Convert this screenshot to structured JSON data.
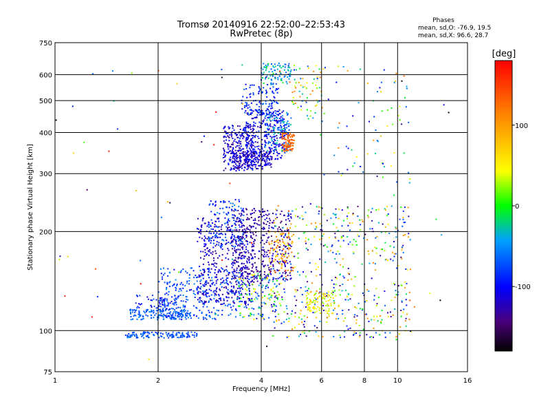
{
  "chart_data": {
    "type": "scatter",
    "title": "Tromsø 20140916 22:52:00–22:53:43",
    "subtitle": "RwPretec (8p)",
    "xlabel": "Frequency [MHz]",
    "ylabel": "Stationary phase Virtual Height [km]",
    "x_scale": "log",
    "y_scale": "log",
    "xlim": [
      1,
      16
    ],
    "ylim": [
      75,
      750
    ],
    "x_ticks": [
      1,
      2,
      4,
      6,
      8,
      10,
      16
    ],
    "x_tick_labels": [
      "1",
      "2",
      "4",
      "6",
      "8",
      "10",
      "16"
    ],
    "y_ticks": [
      75,
      100,
      200,
      300,
      400,
      500,
      600,
      750
    ],
    "y_tick_labels": [
      "75",
      "100",
      "200",
      "300",
      "400",
      "500",
      "600",
      "750"
    ],
    "grid": true,
    "stats": {
      "header": "Phases",
      "line_o": "mean, sd,O: -76.9, 19.5",
      "line_x": "mean, sd,X:  96.6, 28.7"
    },
    "colorbar": {
      "label": "[deg]",
      "range": [
        -180,
        180
      ],
      "ticks": [
        100,
        0,
        -100
      ],
      "tick_labels": [
        "100",
        "0",
        "-100"
      ]
    },
    "clusters": [
      {
        "f": [
          1.6,
          2.6
        ],
        "h": [
          95,
          99
        ],
        "phase": [
          -85,
          -55
        ],
        "n": 120
      },
      {
        "f": [
          1.65,
          2.5
        ],
        "h": [
          108,
          116
        ],
        "phase": [
          -80,
          -55
        ],
        "n": 150
      },
      {
        "f": [
          1.7,
          2.3
        ],
        "h": [
          116,
          128
        ],
        "phase": [
          -110,
          -65
        ],
        "n": 60
      },
      {
        "f": [
          2.0,
          3.4
        ],
        "h": [
          108,
          155
        ],
        "phase": [
          -100,
          -50
        ],
        "n": 300
      },
      {
        "f": [
          2.6,
          3.8
        ],
        "h": [
          120,
          220
        ],
        "phase": [
          -140,
          -95
        ],
        "n": 420
      },
      {
        "f": [
          3.3,
          4.9
        ],
        "h": [
          140,
          235
        ],
        "phase": [
          -150,
          -110
        ],
        "n": 380
      },
      {
        "f": [
          2.8,
          3.6
        ],
        "h": [
          180,
          250
        ],
        "phase": [
          -110,
          -50
        ],
        "n": 140
      },
      {
        "f": [
          3.4,
          4.5
        ],
        "h": [
          108,
          150
        ],
        "phase": [
          -120,
          60
        ],
        "n": 160
      },
      {
        "f": [
          4.2,
          5.0
        ],
        "h": [
          150,
          200
        ],
        "phase": [
          60,
          150
        ],
        "n": 90
      },
      {
        "f": [
          4.3,
          11.0
        ],
        "h": [
          95,
          240
        ],
        "phase": [
          -150,
          120
        ],
        "n": 520
      },
      {
        "f": [
          5.4,
          6.5
        ],
        "h": [
          112,
          132
        ],
        "phase": [
          20,
          80
        ],
        "n": 90
      },
      {
        "f": [
          3.1,
          3.8
        ],
        "h": [
          305,
          420
        ],
        "phase": [
          -140,
          -85
        ],
        "n": 260
      },
      {
        "f": [
          3.3,
          4.3
        ],
        "h": [
          310,
          350
        ],
        "phase": [
          -140,
          -100
        ],
        "n": 180
      },
      {
        "f": [
          3.6,
          4.7
        ],
        "h": [
          330,
          470
        ],
        "phase": [
          -130,
          -80
        ],
        "n": 250
      },
      {
        "f": [
          4.1,
          4.9
        ],
        "h": [
          350,
          460
        ],
        "phase": [
          -110,
          -20
        ],
        "n": 140
      },
      {
        "f": [
          4.6,
          5.0
        ],
        "h": [
          350,
          400
        ],
        "phase": [
          110,
          150
        ],
        "n": 90
      },
      {
        "f": [
          3.5,
          4.5
        ],
        "h": [
          450,
          560
        ],
        "phase": [
          -110,
          -60
        ],
        "n": 110
      },
      {
        "f": [
          4.0,
          4.9
        ],
        "h": [
          560,
          650
        ],
        "phase": [
          -80,
          0
        ],
        "n": 90
      },
      {
        "f": [
          4.8,
          6.0
        ],
        "h": [
          440,
          640
        ],
        "phase": [
          -90,
          130
        ],
        "n": 70
      },
      {
        "f": [
          6.0,
          11.0
        ],
        "h": [
          280,
          660
        ],
        "phase": [
          -120,
          120
        ],
        "n": 70
      },
      {
        "f": [
          1.0,
          14.5
        ],
        "h": [
          80,
          660
        ],
        "phase": [
          -180,
          180
        ],
        "n": 80
      }
    ]
  }
}
